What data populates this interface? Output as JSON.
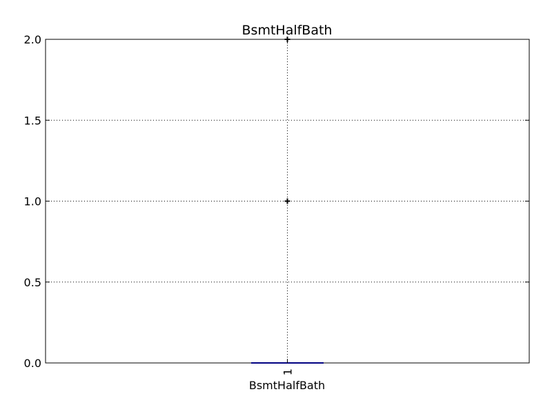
{
  "chart_data": {
    "type": "box",
    "title": "BsmtHalfBath",
    "xlabel": "BsmtHalfBath",
    "ylabel": "",
    "ylim": [
      0,
      2
    ],
    "yticks": [
      "0.0",
      "0.5",
      "1.0",
      "1.5",
      "2.0"
    ],
    "yticks_values": [
      0,
      0.5,
      1.0,
      1.5,
      2.0
    ],
    "categories": [
      "1"
    ],
    "boxes": [
      {
        "category": "1",
        "q1": 0,
        "median": 0,
        "q3": 0,
        "whisker_low": 0,
        "whisker_high": 0,
        "outliers": [
          1,
          2
        ]
      }
    ],
    "grid": true,
    "colors": {
      "box": "#0000ff",
      "median": "#ff0000",
      "outlier": "#000000",
      "grid": "#000000",
      "axis": "#000000"
    }
  }
}
